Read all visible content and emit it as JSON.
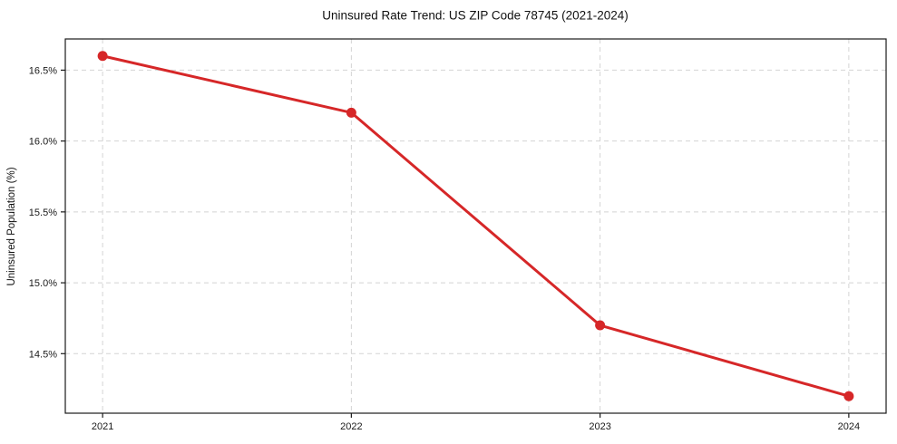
{
  "title": "Uninsured Rate Trend: US ZIP Code 78745 (2021-2024)",
  "chart_data": {
    "type": "line",
    "title": "Uninsured Rate Trend: US ZIP Code 78745 (2021-2024)",
    "xlabel": "",
    "ylabel": "Uninsured Population (%)",
    "x": [
      2021,
      2022,
      2023,
      2024
    ],
    "values": [
      16.6,
      16.2,
      14.7,
      14.2
    ],
    "x_ticks": [
      2021,
      2022,
      2023,
      2024
    ],
    "x_tick_labels": [
      "2021",
      "2022",
      "2023",
      "2024"
    ],
    "y_ticks": [
      14.5,
      15.0,
      15.5,
      16.0,
      16.5
    ],
    "y_tick_labels": [
      "14.5%",
      "15.0%",
      "15.5%",
      "16.0%",
      "16.5%"
    ],
    "xlim": [
      2020.85,
      2024.15
    ],
    "ylim": [
      14.08,
      16.72
    ],
    "grid": true,
    "legend": "none",
    "line_color": "#d62728",
    "marker": "circle"
  },
  "colors": {
    "line": "#d62728",
    "grid": "#d4d4d4",
    "spine": "#1a1a1a",
    "tick_text": "#1a1a1a",
    "background": "#ffffff"
  }
}
